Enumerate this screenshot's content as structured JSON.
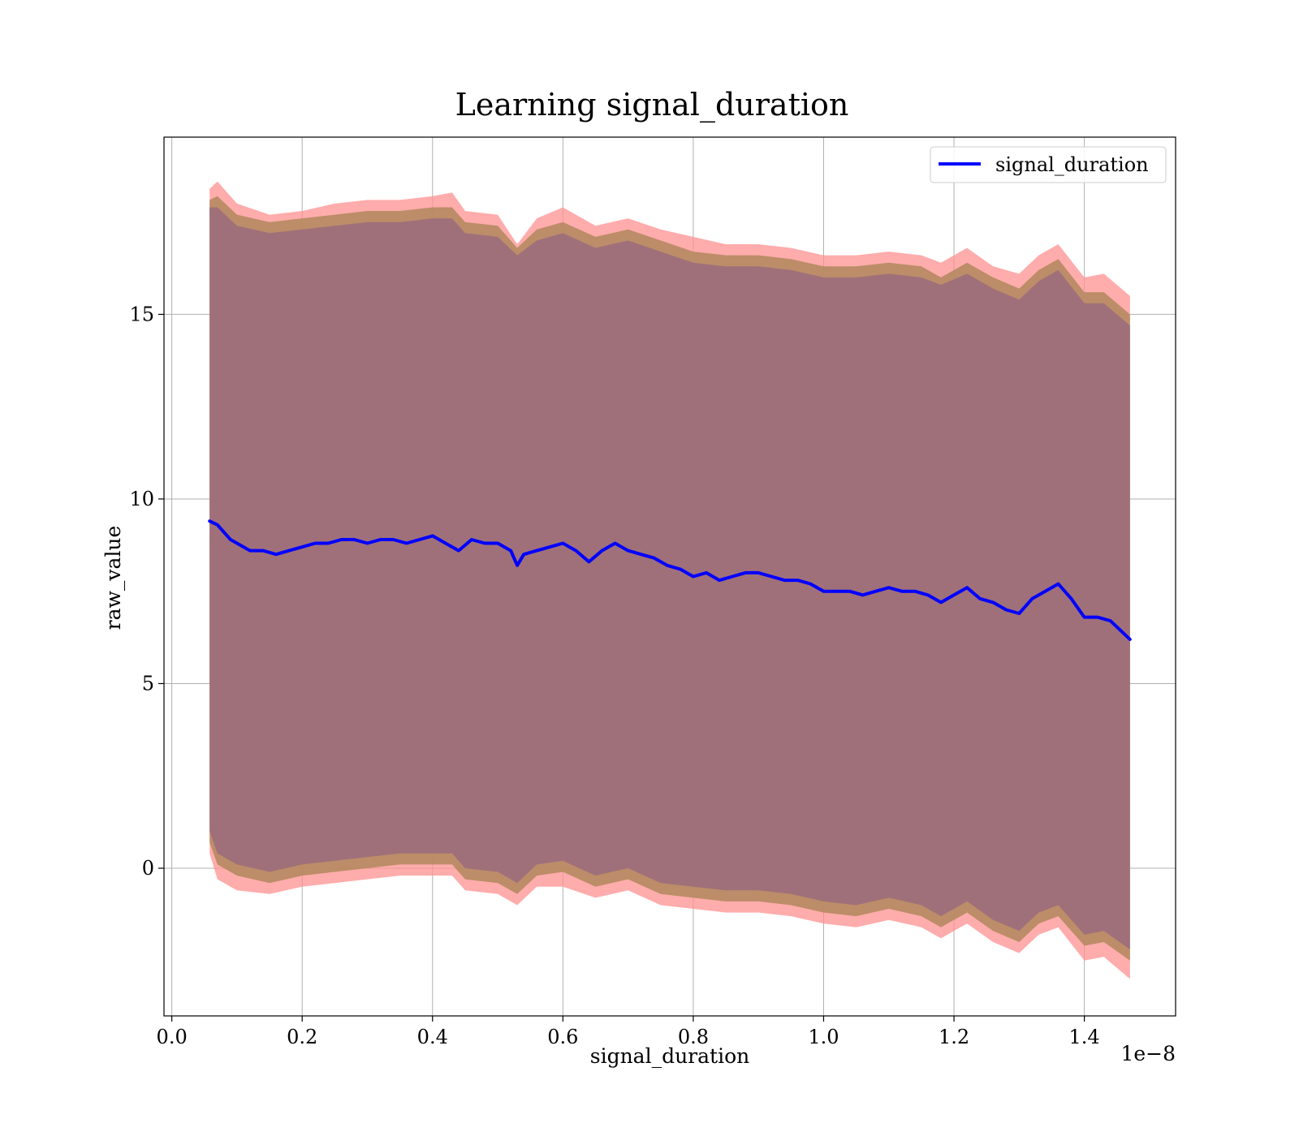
{
  "chart_data": {
    "type": "line",
    "title": "Learning signal_duration",
    "xlabel": "signal_duration",
    "ylabel": "raw_value",
    "x_scale_label": "1e−8",
    "xlim": [
      -0.012,
      1.54
    ],
    "ylim": [
      -4.0,
      19.8
    ],
    "x_ticks": [
      0.0,
      0.2,
      0.4,
      0.6,
      0.8,
      1.0,
      1.2,
      1.4
    ],
    "x_tick_labels": [
      "0.0",
      "0.2",
      "0.4",
      "0.6",
      "0.8",
      "1.0",
      "1.2",
      "1.4"
    ],
    "y_ticks": [
      0,
      5,
      10,
      15
    ],
    "y_tick_labels": [
      "0",
      "5",
      "10",
      "15"
    ],
    "grid": true,
    "legend": {
      "position": "top-right",
      "entries": [
        "signal_duration"
      ]
    },
    "colors": {
      "line": "#0000ff",
      "outer_band": "#ff9090",
      "middle_band": "#b58a60",
      "inner_band": "#a0707a"
    },
    "series": [
      {
        "name": "signal_duration",
        "x": [
          0.058,
          0.07,
          0.08,
          0.09,
          0.1,
          0.12,
          0.14,
          0.16,
          0.18,
          0.2,
          0.22,
          0.24,
          0.26,
          0.28,
          0.3,
          0.32,
          0.34,
          0.36,
          0.38,
          0.4,
          0.42,
          0.44,
          0.46,
          0.48,
          0.5,
          0.52,
          0.53,
          0.54,
          0.56,
          0.58,
          0.6,
          0.62,
          0.64,
          0.66,
          0.68,
          0.7,
          0.72,
          0.74,
          0.76,
          0.78,
          0.8,
          0.82,
          0.84,
          0.86,
          0.88,
          0.9,
          0.92,
          0.94,
          0.96,
          0.98,
          1.0,
          1.02,
          1.04,
          1.06,
          1.08,
          1.1,
          1.12,
          1.14,
          1.16,
          1.18,
          1.2,
          1.22,
          1.24,
          1.26,
          1.28,
          1.3,
          1.32,
          1.34,
          1.36,
          1.38,
          1.4,
          1.42,
          1.44,
          1.47
        ],
        "y": [
          9.4,
          9.3,
          9.1,
          8.9,
          8.8,
          8.6,
          8.6,
          8.5,
          8.6,
          8.7,
          8.8,
          8.8,
          8.9,
          8.9,
          8.8,
          8.9,
          8.9,
          8.8,
          8.9,
          9.0,
          8.8,
          8.6,
          8.9,
          8.8,
          8.8,
          8.6,
          8.2,
          8.5,
          8.6,
          8.7,
          8.8,
          8.6,
          8.3,
          8.6,
          8.8,
          8.6,
          8.5,
          8.4,
          8.2,
          8.1,
          7.9,
          8.0,
          7.8,
          7.9,
          8.0,
          8.0,
          7.9,
          7.8,
          7.8,
          7.7,
          7.5,
          7.5,
          7.5,
          7.4,
          7.5,
          7.6,
          7.5,
          7.5,
          7.4,
          7.2,
          7.4,
          7.6,
          7.3,
          7.2,
          7.0,
          6.9,
          7.3,
          7.5,
          7.7,
          7.3,
          6.8,
          6.8,
          6.7,
          6.2
        ]
      }
    ],
    "bands": [
      {
        "name": "outer",
        "x": [
          0.058,
          0.07,
          0.1,
          0.15,
          0.2,
          0.25,
          0.3,
          0.35,
          0.4,
          0.43,
          0.45,
          0.5,
          0.53,
          0.56,
          0.6,
          0.65,
          0.7,
          0.75,
          0.8,
          0.85,
          0.9,
          0.95,
          1.0,
          1.05,
          1.1,
          1.15,
          1.18,
          1.22,
          1.26,
          1.3,
          1.33,
          1.36,
          1.4,
          1.43,
          1.47
        ],
        "upper": [
          18.4,
          18.6,
          18.0,
          17.7,
          17.8,
          18.0,
          18.1,
          18.1,
          18.2,
          18.3,
          17.8,
          17.7,
          16.9,
          17.6,
          17.9,
          17.4,
          17.6,
          17.3,
          17.1,
          16.9,
          16.9,
          16.8,
          16.6,
          16.6,
          16.7,
          16.6,
          16.4,
          16.8,
          16.3,
          16.1,
          16.6,
          16.9,
          16.0,
          16.1,
          15.5
        ],
        "lower": [
          0.4,
          -0.3,
          -0.6,
          -0.7,
          -0.5,
          -0.4,
          -0.3,
          -0.2,
          -0.2,
          -0.2,
          -0.6,
          -0.7,
          -1.0,
          -0.5,
          -0.5,
          -0.8,
          -0.6,
          -1.0,
          -1.1,
          -1.2,
          -1.2,
          -1.3,
          -1.5,
          -1.6,
          -1.4,
          -1.6,
          -1.9,
          -1.5,
          -2.0,
          -2.3,
          -1.8,
          -1.6,
          -2.5,
          -2.4,
          -3.0
        ]
      },
      {
        "name": "middle",
        "x": [
          0.058,
          0.07,
          0.1,
          0.15,
          0.2,
          0.25,
          0.3,
          0.35,
          0.4,
          0.43,
          0.45,
          0.5,
          0.53,
          0.56,
          0.6,
          0.65,
          0.7,
          0.75,
          0.8,
          0.85,
          0.9,
          0.95,
          1.0,
          1.05,
          1.1,
          1.15,
          1.18,
          1.22,
          1.26,
          1.3,
          1.33,
          1.36,
          1.4,
          1.43,
          1.47
        ],
        "upper": [
          18.1,
          18.2,
          17.7,
          17.5,
          17.6,
          17.7,
          17.8,
          17.8,
          17.9,
          17.9,
          17.5,
          17.4,
          16.8,
          17.3,
          17.5,
          17.1,
          17.3,
          17.0,
          16.7,
          16.6,
          16.6,
          16.5,
          16.3,
          16.3,
          16.4,
          16.3,
          16.0,
          16.4,
          16.0,
          15.7,
          16.2,
          16.5,
          15.6,
          15.6,
          15.0
        ],
        "lower": [
          0.7,
          0.1,
          -0.2,
          -0.4,
          -0.2,
          -0.1,
          0.0,
          0.1,
          0.1,
          0.1,
          -0.3,
          -0.4,
          -0.7,
          -0.2,
          -0.1,
          -0.5,
          -0.3,
          -0.7,
          -0.8,
          -0.9,
          -0.9,
          -1.0,
          -1.2,
          -1.3,
          -1.1,
          -1.3,
          -1.6,
          -1.2,
          -1.7,
          -2.0,
          -1.5,
          -1.3,
          -2.1,
          -2.0,
          -2.5
        ]
      },
      {
        "name": "inner",
        "x": [
          0.058,
          0.07,
          0.1,
          0.15,
          0.2,
          0.25,
          0.3,
          0.35,
          0.4,
          0.43,
          0.45,
          0.5,
          0.53,
          0.56,
          0.6,
          0.65,
          0.7,
          0.75,
          0.8,
          0.85,
          0.9,
          0.95,
          1.0,
          1.05,
          1.1,
          1.15,
          1.18,
          1.22,
          1.26,
          1.3,
          1.33,
          1.36,
          1.4,
          1.43,
          1.47
        ],
        "upper": [
          17.9,
          17.9,
          17.4,
          17.2,
          17.3,
          17.4,
          17.5,
          17.5,
          17.6,
          17.6,
          17.2,
          17.1,
          16.6,
          17.0,
          17.2,
          16.8,
          17.0,
          16.7,
          16.4,
          16.3,
          16.3,
          16.2,
          16.0,
          16.0,
          16.1,
          16.0,
          15.8,
          16.1,
          15.7,
          15.4,
          15.9,
          16.2,
          15.3,
          15.3,
          14.7
        ],
        "lower": [
          1.0,
          0.4,
          0.1,
          -0.1,
          0.1,
          0.2,
          0.3,
          0.4,
          0.4,
          0.4,
          0.0,
          -0.1,
          -0.4,
          0.1,
          0.2,
          -0.2,
          0.0,
          -0.4,
          -0.5,
          -0.6,
          -0.6,
          -0.7,
          -0.9,
          -1.0,
          -0.8,
          -1.0,
          -1.3,
          -0.9,
          -1.4,
          -1.7,
          -1.2,
          -1.0,
          -1.8,
          -1.7,
          -2.2
        ]
      }
    ]
  }
}
